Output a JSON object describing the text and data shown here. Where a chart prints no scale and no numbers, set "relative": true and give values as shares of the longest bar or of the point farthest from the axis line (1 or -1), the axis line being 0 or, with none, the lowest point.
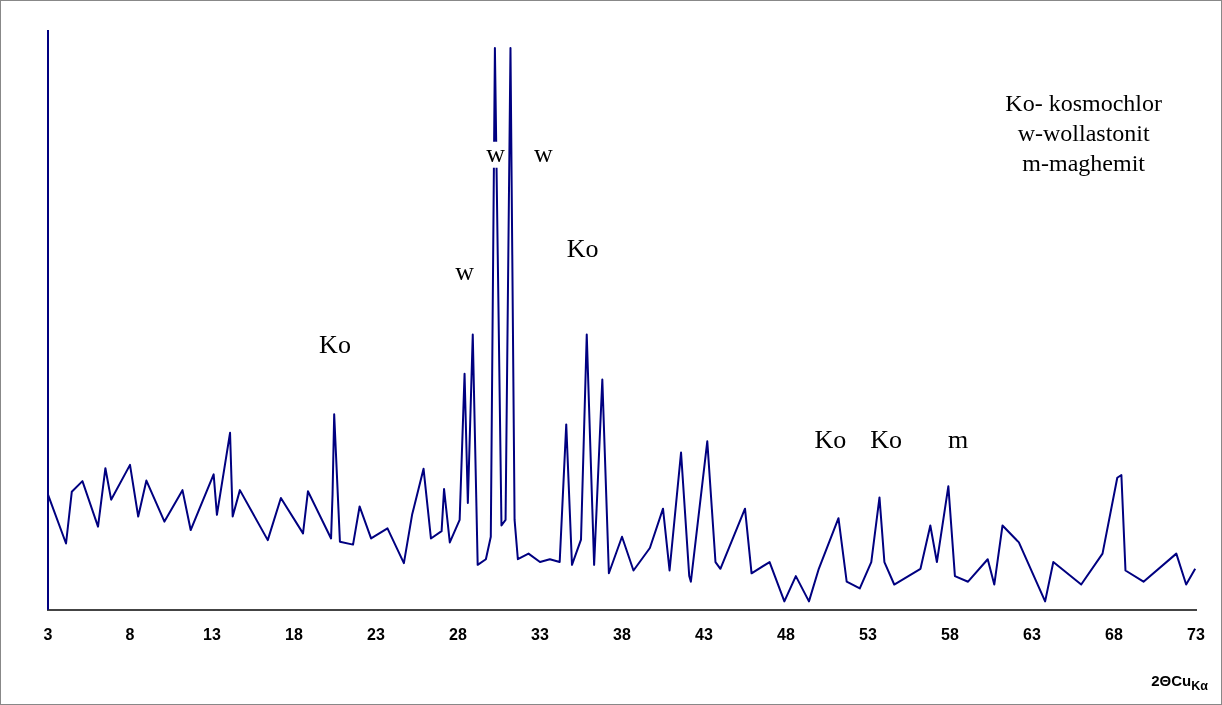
{
  "chart_data": {
    "type": "line",
    "relative": true,
    "xlabel": "2ΘCu$_{Kα}$",
    "xlim": [
      3,
      73
    ],
    "xticks": [
      3,
      8,
      13,
      18,
      23,
      28,
      33,
      38,
      43,
      48,
      53,
      58,
      63,
      68,
      73
    ],
    "grid": false,
    "ref_lines": [
      {
        "axis": "x",
        "value": 3,
        "color": "#000080"
      }
    ],
    "legend": false,
    "marker": "none",
    "line_style": "solid",
    "annotations": [
      {
        "text": "Ko",
        "x": 20.5,
        "y": 0.47
      },
      {
        "text": "w",
        "x": 28.4,
        "y": 0.6
      },
      {
        "text": "w",
        "x": 30.3,
        "y": 0.81
      },
      {
        "text": "w",
        "x": 33.2,
        "y": 0.81
      },
      {
        "text": "Ko",
        "x": 35.6,
        "y": 0.64
      },
      {
        "text": "Ko",
        "x": 50.7,
        "y": 0.3
      },
      {
        "text": "Ko",
        "x": 54.1,
        "y": 0.3
      },
      {
        "text": "m",
        "x": 58.5,
        "y": 0.3
      },
      "Ko- kosmochlor",
      "w-wollastonit",
      "m-maghemit"
    ],
    "series": [
      {
        "color": "#000080",
        "x": [
          3,
          4.1,
          4.45,
          5.1,
          6.05,
          6.5,
          6.85,
          8.0,
          8.5,
          9.0,
          10.1,
          11.2,
          11.7,
          13.1,
          13.3,
          14.1,
          14.26,
          14.7,
          16.4,
          17.2,
          18.55,
          18.85,
          20.26,
          20.35,
          20.45,
          20.8,
          21.6,
          22.0,
          22.7,
          23.7,
          24.7,
          25.2,
          25.9,
          26.35,
          27.0,
          27.15,
          27.5,
          28.1,
          28.4,
          28.6,
          28.9,
          29.2,
          29.7,
          30.0,
          30.25,
          30.65,
          30.9,
          31.2,
          31.45,
          31.65,
          32.3,
          33.0,
          33.6,
          34.2,
          34.6,
          34.95,
          35.5,
          35.85,
          36.3,
          36.8,
          37.2,
          38.0,
          38.7,
          39.7,
          40.5,
          40.9,
          41.6,
          42.1,
          42.2,
          43.2,
          43.7,
          44.0,
          45.5,
          45.9,
          47.0,
          47.9,
          48.6,
          49.4,
          50.0,
          51.2,
          51.7,
          52.5,
          53.2,
          53.7,
          54.0,
          54.6,
          56.2,
          56.8,
          57.2,
          57.9,
          58.3,
          59.1,
          60.3,
          60.7,
          61.2,
          62.2,
          63.8,
          64.3,
          66.0,
          67.3,
          68.2,
          68.45,
          68.7,
          69.8,
          71.8,
          72.4,
          72.95
        ],
        "values": [
          0.205,
          0.118,
          0.21,
          0.229,
          0.148,
          0.252,
          0.196,
          0.258,
          0.166,
          0.23,
          0.157,
          0.213,
          0.142,
          0.241,
          0.169,
          0.315,
          0.166,
          0.213,
          0.124,
          0.199,
          0.136,
          0.211,
          0.127,
          0.205,
          0.348,
          0.121,
          0.116,
          0.184,
          0.127,
          0.145,
          0.083,
          0.169,
          0.251,
          0.127,
          0.14,
          0.215,
          0.12,
          0.16,
          0.42,
          0.19,
          0.49,
          0.08,
          0.09,
          0.13,
          1,
          0.15,
          0.16,
          1,
          0.16,
          0.09,
          0.1,
          0.085,
          0.09,
          0.085,
          0.33,
          0.08,
          0.125,
          0.49,
          0.08,
          0.41,
          0.065,
          0.13,
          0.07,
          0.11,
          0.18,
          0.07,
          0.28,
          0.06,
          0.05,
          0.3,
          0.085,
          0.073,
          0.18,
          0.065,
          0.085,
          0.015,
          0.06,
          0.015,
          0.073,
          0.163,
          0.05,
          0.038,
          0.085,
          0.2,
          0.085,
          0.045,
          0.073,
          0.15,
          0.085,
          0.22,
          0.06,
          0.05,
          0.09,
          0.045,
          0.15,
          0.12,
          0.015,
          0.085,
          0.045,
          0.1,
          0.235,
          0.24,
          0.07,
          0.05,
          0.1,
          0.045,
          0.073
        ]
      }
    ]
  }
}
